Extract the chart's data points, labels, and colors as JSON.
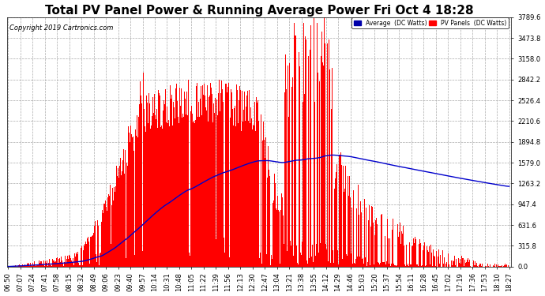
{
  "title": "Total PV Panel Power & Running Average Power Fri Oct 4 18:28",
  "copyright": "Copyright 2019 Cartronics.com",
  "ylabel_right_values": [
    0.0,
    315.8,
    631.6,
    947.4,
    1263.2,
    1579.0,
    1894.8,
    2210.6,
    2526.4,
    2842.2,
    3158.0,
    3473.8,
    3789.6
  ],
  "ymax": 3789.6,
  "ymin": 0.0,
  "bar_color": "#ff0000",
  "avg_color": "#0000cc",
  "background_color": "#ffffff",
  "plot_bg_color": "#ffffff",
  "grid_color": "#aaaaaa",
  "x_labels": [
    "06:50",
    "07:07",
    "07:24",
    "07:41",
    "07:58",
    "08:15",
    "08:32",
    "08:49",
    "09:06",
    "09:23",
    "09:40",
    "09:57",
    "10:14",
    "10:31",
    "10:48",
    "11:05",
    "11:22",
    "11:39",
    "11:56",
    "12:13",
    "12:30",
    "12:47",
    "13:04",
    "13:21",
    "13:38",
    "13:55",
    "14:12",
    "14:29",
    "14:46",
    "15:03",
    "15:20",
    "15:37",
    "15:54",
    "16:11",
    "16:28",
    "16:45",
    "17:02",
    "17:19",
    "17:36",
    "17:53",
    "18:10",
    "18:27"
  ],
  "title_fontsize": 11,
  "axis_fontsize": 6,
  "copyright_fontsize": 6
}
